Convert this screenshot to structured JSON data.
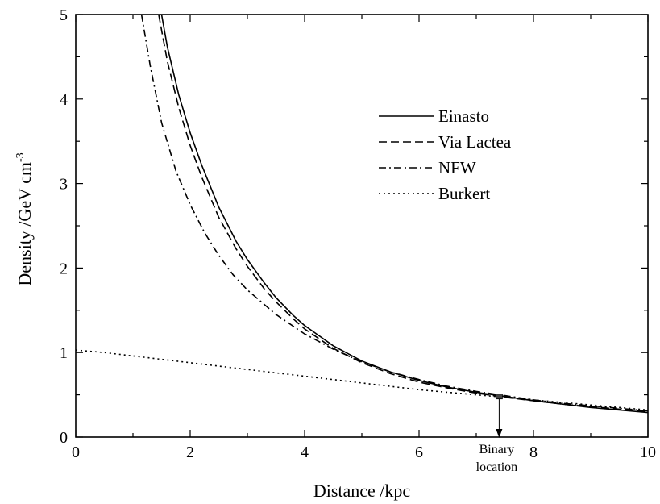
{
  "chart_data": {
    "type": "line",
    "xlabel": "Distance /kpc",
    "ylabel": "Density /GeV cm",
    "ylabel_sup": "-3",
    "xlim": [
      0,
      10
    ],
    "ylim": [
      0,
      5
    ],
    "x_ticks": [
      0,
      2,
      4,
      6,
      8,
      10
    ],
    "y_ticks": [
      0,
      1,
      2,
      3,
      4,
      5
    ],
    "legend_position": "top-right",
    "grid": false,
    "series": [
      {
        "name": "Einasto",
        "style": "solid",
        "x": [
          1.5,
          1.6,
          1.8,
          2.0,
          2.2,
          2.5,
          2.8,
          3.0,
          3.3,
          3.5,
          3.8,
          4.0,
          4.5,
          5.0,
          5.5,
          6.0,
          6.5,
          7.0,
          7.5,
          8.0,
          8.5,
          9.0,
          9.5,
          10.0
        ],
        "y": [
          5.0,
          4.62,
          4.05,
          3.6,
          3.22,
          2.72,
          2.32,
          2.1,
          1.82,
          1.65,
          1.44,
          1.32,
          1.08,
          0.9,
          0.77,
          0.67,
          0.59,
          0.53,
          0.48,
          0.43,
          0.39,
          0.35,
          0.32,
          0.29
        ]
      },
      {
        "name": "Via Lactea",
        "style": "dashed",
        "x": [
          1.45,
          1.6,
          1.8,
          2.0,
          2.2,
          2.5,
          2.8,
          3.0,
          3.3,
          3.5,
          3.8,
          4.0,
          4.5,
          5.0,
          5.5,
          6.0,
          6.5,
          7.0,
          7.5,
          8.0,
          8.5,
          9.0,
          9.5,
          10.0
        ],
        "y": [
          5.0,
          4.45,
          3.9,
          3.45,
          3.08,
          2.6,
          2.23,
          2.02,
          1.75,
          1.6,
          1.4,
          1.28,
          1.05,
          0.88,
          0.75,
          0.65,
          0.58,
          0.52,
          0.47,
          0.43,
          0.39,
          0.36,
          0.33,
          0.3
        ]
      },
      {
        "name": "NFW",
        "style": "dash-dot",
        "x": [
          1.15,
          1.3,
          1.5,
          1.75,
          2.0,
          2.25,
          2.5,
          2.75,
          3.0,
          3.5,
          4.0,
          4.5,
          5.0,
          5.5,
          6.0,
          6.5,
          7.0,
          7.5,
          8.0,
          8.5,
          9.0,
          9.5,
          10.0
        ],
        "y": [
          5.0,
          4.4,
          3.72,
          3.15,
          2.75,
          2.42,
          2.15,
          1.92,
          1.74,
          1.45,
          1.22,
          1.04,
          0.89,
          0.77,
          0.68,
          0.6,
          0.54,
          0.49,
          0.44,
          0.4,
          0.37,
          0.34,
          0.31
        ]
      },
      {
        "name": "Burkert",
        "style": "dotted",
        "x": [
          0.0,
          0.5,
          1.0,
          1.5,
          2.0,
          2.5,
          3.0,
          3.5,
          4.0,
          4.5,
          5.0,
          5.5,
          6.0,
          6.5,
          7.0,
          7.5,
          8.0,
          8.5,
          9.0,
          9.5,
          10.0
        ],
        "y": [
          1.03,
          1.0,
          0.96,
          0.92,
          0.88,
          0.84,
          0.8,
          0.76,
          0.72,
          0.68,
          0.64,
          0.6,
          0.56,
          0.53,
          0.5,
          0.47,
          0.44,
          0.41,
          0.38,
          0.35,
          0.32
        ]
      }
    ],
    "annotations": [
      {
        "text_line1": "Binary",
        "text_line2": "location",
        "x": 7.4,
        "y": 0.48
      }
    ]
  }
}
